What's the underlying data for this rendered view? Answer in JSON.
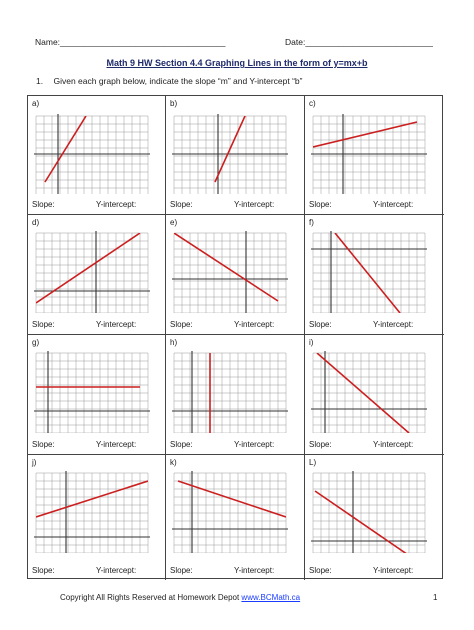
{
  "header": {
    "name_label": "Name:",
    "name_blank": "___________________________________",
    "date_label": "Date:",
    "date_blank": "___________________________"
  },
  "title": "Math 9 HW Section 4.4 Graphing Lines in the form of y=mx+b",
  "instruction": {
    "number": "1.",
    "text": "Given each graph below, indicate the slope “m” and Y-intercept “b”"
  },
  "slope_label": "Slope:",
  "yint_label": "Y-intercept:",
  "colors": {
    "line": "#cc1f1f",
    "axis": "#333333",
    "grid": "#9a9a9a"
  },
  "graphs": [
    {
      "label": "a)"
    },
    {
      "label": "b)"
    },
    {
      "label": "c)"
    },
    {
      "label": "d)"
    },
    {
      "label": "e)"
    },
    {
      "label": "f)"
    },
    {
      "label": "g)"
    },
    {
      "label": "h)"
    },
    {
      "label": "i)"
    },
    {
      "label": "j)"
    },
    {
      "label": "k)"
    },
    {
      "label": "L)"
    }
  ],
  "footer": {
    "copyright": "Copyright All Rights Reserved at Homework Depot ",
    "link": "www.BCMath.ca",
    "page_number": "1"
  }
}
